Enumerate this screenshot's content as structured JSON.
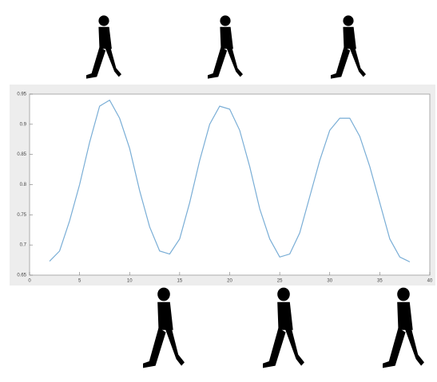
{
  "chart_data": {
    "type": "line",
    "x": [
      2,
      3,
      4,
      5,
      6,
      7,
      8,
      9,
      10,
      11,
      12,
      13,
      14,
      15,
      16,
      17,
      18,
      19,
      20,
      21,
      22,
      23,
      24,
      25,
      26,
      27,
      28,
      29,
      30,
      31,
      32,
      33,
      34,
      35,
      36,
      37,
      38
    ],
    "series": [
      {
        "color": "#7aaed6",
        "values": [
          0.673,
          0.69,
          0.74,
          0.8,
          0.87,
          0.93,
          0.94,
          0.91,
          0.86,
          0.79,
          0.73,
          0.69,
          0.685,
          0.71,
          0.77,
          0.84,
          0.9,
          0.93,
          0.925,
          0.89,
          0.83,
          0.76,
          0.71,
          0.68,
          0.685,
          0.72,
          0.78,
          0.84,
          0.89,
          0.91,
          0.91,
          0.88,
          0.83,
          0.77,
          0.71,
          0.68,
          0.672
        ]
      }
    ],
    "xlim": [
      0,
      40
    ],
    "xticks": [
      0,
      5,
      10,
      15,
      20,
      25,
      30,
      35,
      40
    ],
    "ylim": [
      0.65,
      0.95
    ],
    "yticks": [
      0.65,
      0.7,
      0.75,
      0.8,
      0.85,
      0.9,
      0.95
    ]
  }
}
